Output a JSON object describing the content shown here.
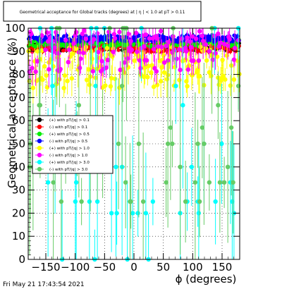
{
  "chart_data": {
    "type": "scatter",
    "title": "Geometrical acceptance for Global tracks (degrees) at | η | < 1.0 at pT > 0.11",
    "xlabel": "ϕ (degrees)",
    "ylabel": "Geometrical acceptance (%)",
    "xlim": [
      -180,
      180
    ],
    "ylim": [
      0,
      100
    ],
    "x_ticks": [
      -150,
      -100,
      -50,
      0,
      50,
      100,
      150
    ],
    "y_ticks": [
      0,
      10,
      20,
      30,
      40,
      50,
      60,
      70,
      80,
      90,
      100
    ],
    "grid": true,
    "legend_position": "middle-left",
    "timestamp": "Fri May 21 17:43:54 2021",
    "series": [
      {
        "name": "(+) with pT/|q| > 0.1",
        "color": "#000000",
        "pattern": "band",
        "base": 92.0,
        "amp": 1.6,
        "wrap_at": 180
      },
      {
        "name": "(-) with pT/|q| > 0.1",
        "color": "#ff0000",
        "pattern": "band",
        "base": 91.5,
        "amp": 1.8,
        "wrap_at": 180
      },
      {
        "name": "(+) with pT/|q| > 0.5",
        "color": "#00ee00",
        "pattern": "band",
        "base": 93.5,
        "amp": 1.5,
        "wrap_at": 180
      },
      {
        "name": "(-) with pT/|q| > 0.5",
        "color": "#0000ff",
        "pattern": "band",
        "base": 95.5,
        "amp": 1.4,
        "wrap_at": 180
      },
      {
        "name": "(+) with pT/|q| > 1.0",
        "color": "#ffff00",
        "pattern": "scatter",
        "levels": [
          75,
          80,
          83,
          86,
          78,
          88,
          91
        ],
        "wrap_at": 180
      },
      {
        "name": "(-) with pT/|q| > 1.0",
        "color": "#ff00ff",
        "pattern": "scatter",
        "levels": [
          90,
          92,
          94,
          96,
          86,
          82,
          98
        ],
        "wrap_at": 180
      },
      {
        "name": "(+) with pT/|q| > 3.0",
        "color": "#00ffff",
        "pattern": "sparse",
        "levels": [
          100,
          66.7,
          50,
          40,
          33.3,
          25,
          20,
          75,
          0
        ],
        "wrap_at": 180
      },
      {
        "name": "(-) with pT/|q| > 3.0",
        "color": "#66cc66",
        "pattern": "sparse",
        "levels": [
          100,
          66.7,
          50,
          40,
          33.3,
          25,
          75,
          57
        ],
        "wrap_at": 180
      }
    ]
  }
}
